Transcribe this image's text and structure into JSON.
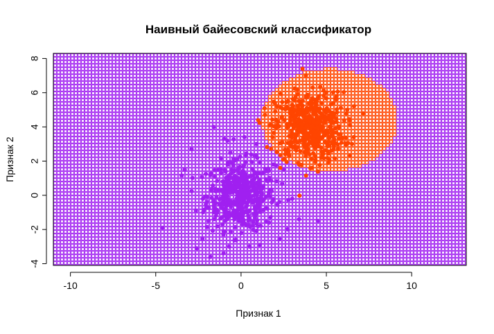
{
  "chart_data": {
    "type": "scatter",
    "title": "Наивный байесовский классификатор",
    "xlabel": "Признак 1",
    "ylabel": "Признак 2",
    "xlim": [
      -11,
      13.2
    ],
    "ylim": [
      -4.1,
      8.3
    ],
    "xticks": [
      -10,
      -5,
      0,
      5,
      10
    ],
    "xtick_labels": [
      "-10",
      "-5",
      "0",
      "5",
      "10"
    ],
    "yticks": [
      -4,
      -2,
      0,
      2,
      4,
      6,
      8
    ],
    "ytick_labels": [
      "-4",
      "-2",
      "0",
      "2",
      "4",
      "6",
      "8"
    ],
    "grid": true,
    "background_grid": {
      "class_1_color": "#A020F0",
      "class_2_color": "#FF4500",
      "class_2_region": {
        "shape": "ellipse",
        "center": [
          5.2,
          4.4
        ],
        "radius_x": 4.0,
        "radius_y": 3.0
      }
    },
    "series": [
      {
        "color": "#A020F0",
        "center": [
          0,
          0
        ],
        "sd": 1.0,
        "n": 500,
        "points": [
          [
            -4.6,
            -1.9
          ],
          [
            -2.9,
            2.7
          ],
          [
            -2.6,
            -3.1
          ],
          [
            -1.8,
            -3.6
          ],
          [
            -1.6,
            4.0
          ],
          [
            -1.0,
            3.3
          ],
          [
            -0.8,
            3.2
          ],
          [
            0.2,
            3.4
          ],
          [
            0.9,
            3.0
          ],
          [
            1.1,
            -2.9
          ],
          [
            2.7,
            2.6
          ],
          [
            2.5,
            1.5
          ],
          [
            3.0,
            -0.2
          ],
          [
            1.9,
            1.8
          ],
          [
            3.4,
            -1.4
          ],
          [
            4.5,
            -1.5
          ],
          [
            -3.3,
            1.5
          ],
          [
            -0.7,
            -3.0
          ],
          [
            0.5,
            -3.0
          ],
          [
            -0.3,
            -2.6
          ]
        ]
      },
      {
        "color": "#FF4500",
        "center": [
          4,
          4
        ],
        "sd": 1.0,
        "n": 500,
        "points": [
          [
            2.0,
            4.9
          ],
          [
            2.3,
            1.6
          ],
          [
            3.6,
            7.4
          ],
          [
            3.8,
            7.0
          ],
          [
            4.2,
            6.3
          ],
          [
            6.5,
            3.0
          ],
          [
            6.6,
            3.4
          ],
          [
            5.0,
            6.0
          ],
          [
            4.5,
            1.4
          ],
          [
            3.0,
            5.3
          ],
          [
            1.4,
            4.7
          ],
          [
            2.9,
            2.9
          ],
          [
            5.6,
            5.6
          ],
          [
            5.1,
            1.9
          ]
        ]
      }
    ]
  }
}
